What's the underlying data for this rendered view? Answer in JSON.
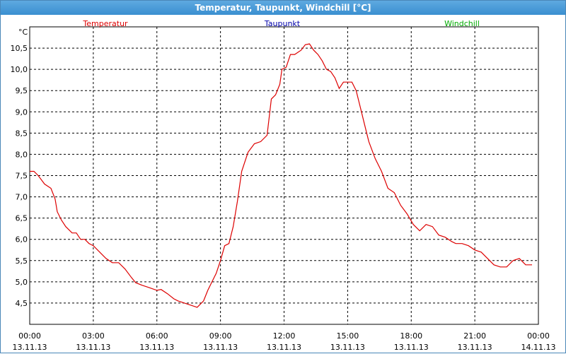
{
  "window": {
    "title": "Temperatur, Taupunkt, Windchill [°C]"
  },
  "colors": {
    "temperature": "#dd0000",
    "dewpoint": "#0000aa",
    "windchill": "#00aa00",
    "titlebar": "#3a8fd0",
    "grid": "#000000"
  },
  "chart_data": {
    "type": "line",
    "title": "Temperatur, Taupunkt, Windchill [°C]",
    "ylabel": "°C",
    "ylim": [
      4.0,
      11.0
    ],
    "xlim": [
      0,
      24
    ],
    "grid": true,
    "legend_placement": "top",
    "y_ticks": [
      {
        "value": 4.5,
        "label": "4,5"
      },
      {
        "value": 5.0,
        "label": "5,0"
      },
      {
        "value": 5.5,
        "label": "5,5"
      },
      {
        "value": 6.0,
        "label": "6,0"
      },
      {
        "value": 6.5,
        "label": "6,5"
      },
      {
        "value": 7.0,
        "label": "7,0"
      },
      {
        "value": 7.5,
        "label": "7,5"
      },
      {
        "value": 8.0,
        "label": "8,0"
      },
      {
        "value": 8.5,
        "label": "8,5"
      },
      {
        "value": 9.0,
        "label": "9,0"
      },
      {
        "value": 9.5,
        "label": "9,5"
      },
      {
        "value": 10.0,
        "label": "10,0"
      },
      {
        "value": 10.5,
        "label": "10,5"
      }
    ],
    "x_ticks": [
      {
        "value": 0,
        "time": "00:00",
        "date": "13.11.13"
      },
      {
        "value": 3,
        "time": "03:00",
        "date": "13.11.13"
      },
      {
        "value": 6,
        "time": "06:00",
        "date": "13.11.13"
      },
      {
        "value": 9,
        "time": "09:00",
        "date": "13.11.13"
      },
      {
        "value": 12,
        "time": "12:00",
        "date": "13.11.13"
      },
      {
        "value": 15,
        "time": "15:00",
        "date": "13.11.13"
      },
      {
        "value": 18,
        "time": "18:00",
        "date": "13.11.13"
      },
      {
        "value": 21,
        "time": "21:00",
        "date": "13.11.13"
      },
      {
        "value": 24,
        "time": "00:00",
        "date": "14.11.13"
      }
    ],
    "legend": [
      {
        "name": "Temperatur",
        "color": "#dd0000"
      },
      {
        "name": "Taupunkt",
        "color": "#0000aa"
      },
      {
        "name": "Windchill",
        "color": "#00aa00"
      }
    ],
    "series": [
      {
        "name": "Temperatur",
        "color": "#dd0000",
        "x": [
          0,
          0.2,
          0.4,
          0.7,
          1.0,
          1.2,
          1.3,
          1.5,
          1.7,
          2.0,
          2.2,
          2.4,
          2.6,
          2.8,
          3.0,
          3.3,
          3.6,
          3.9,
          4.2,
          4.5,
          4.8,
          5.0,
          5.3,
          5.6,
          6.0,
          6.2,
          6.5,
          6.8,
          7.0,
          7.3,
          7.6,
          7.9,
          8.2,
          8.4,
          8.6,
          8.8,
          9.0,
          9.2,
          9.4,
          9.6,
          9.8,
          10.0,
          10.3,
          10.6,
          10.9,
          11.2,
          11.4,
          11.6,
          11.8,
          11.9,
          12.1,
          12.3,
          12.5,
          12.8,
          13.0,
          13.2,
          13.4,
          13.6,
          13.8,
          14.0,
          14.2,
          14.4,
          14.6,
          14.8,
          15.0,
          15.2,
          15.4,
          15.6,
          15.8,
          16.0,
          16.3,
          16.6,
          16.9,
          17.2,
          17.5,
          17.8,
          18.1,
          18.4,
          18.7,
          19.0,
          19.3,
          19.6,
          19.9,
          20.1,
          20.4,
          20.7,
          21.0,
          21.3,
          21.6,
          21.9,
          22.2,
          22.5,
          22.8,
          23.1,
          23.4,
          23.7
        ],
        "values": [
          7.6,
          7.6,
          7.5,
          7.3,
          7.2,
          6.95,
          6.65,
          6.45,
          6.3,
          6.15,
          6.15,
          6.0,
          6.0,
          5.9,
          5.85,
          5.7,
          5.55,
          5.45,
          5.45,
          5.3,
          5.1,
          4.98,
          4.92,
          4.87,
          4.8,
          4.82,
          4.72,
          4.6,
          4.55,
          4.5,
          4.45,
          4.4,
          4.55,
          4.8,
          5.0,
          5.2,
          5.5,
          5.85,
          5.9,
          6.3,
          6.9,
          7.6,
          8.05,
          8.25,
          8.3,
          8.45,
          9.3,
          9.4,
          9.65,
          10.0,
          10.05,
          10.35,
          10.35,
          10.45,
          10.58,
          10.6,
          10.45,
          10.35,
          10.2,
          10.0,
          9.95,
          9.8,
          9.55,
          9.7,
          9.7,
          9.7,
          9.5,
          9.1,
          8.7,
          8.3,
          7.9,
          7.6,
          7.2,
          7.1,
          6.8,
          6.6,
          6.35,
          6.2,
          6.35,
          6.3,
          6.1,
          6.05,
          5.95,
          5.9,
          5.9,
          5.85,
          5.75,
          5.7,
          5.55,
          5.4,
          5.35,
          5.35,
          5.5,
          5.55,
          5.4,
          5.4
        ]
      }
    ]
  }
}
